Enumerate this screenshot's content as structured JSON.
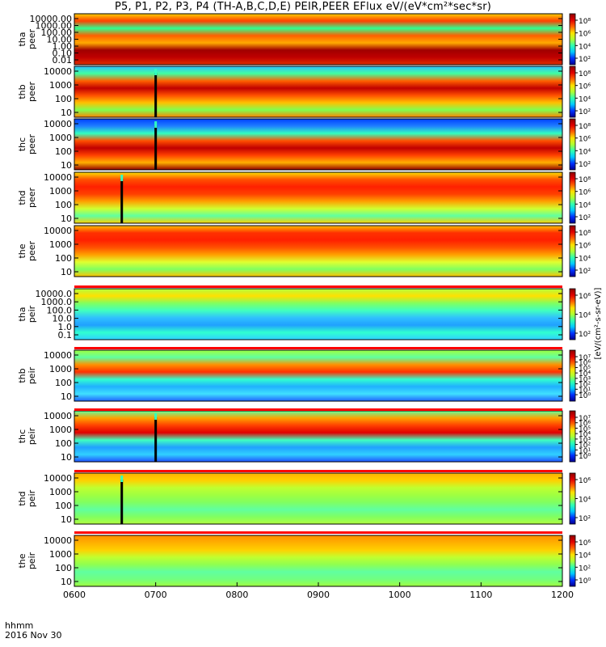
{
  "title": "P5, P1, P2, P3, P4 (TH-A,B,C,D,E) PEIR,PEER EFlux eV/(eV*cm^2*sec*sr)",
  "footer": {
    "time_unit_label": "hhmm",
    "date_label": "2016 Nov 30"
  },
  "colorbar_unit_label": "[eV/(cm^2-s-sr-eV)]",
  "chart_data": {
    "type": "heatmap",
    "title": "P5, P1, P2, P3, P4 (TH-A,B,C,D,E) PEIR,PEER EFlux eV/(eV*cm^2*sec*sr)",
    "x_ticks": [
      "0600",
      "0700",
      "0800",
      "0900",
      "1000",
      "1100",
      "1200"
    ],
    "x_range": [
      "0600",
      "1200"
    ],
    "panels": [
      {
        "probe": "tha",
        "species": "peer",
        "ylabel": "tha\npeer",
        "yticks": [
          "10000.00",
          "1000.00",
          "100.00",
          "10.00",
          "1.00",
          "0.10",
          "0.01"
        ],
        "flux_range": "10^1 – 10^8",
        "cbar_ticks": [
          "10^8",
          "10^6",
          "10^4",
          "10^2"
        ]
      },
      {
        "probe": "thb",
        "species": "peer",
        "ylabel": "thb\npeer",
        "yticks": [
          "10000",
          "1000",
          "100",
          "10"
        ],
        "flux_range": "10^1 – 10^8",
        "cbar_ticks": [
          "10^8",
          "10^6",
          "10^4",
          "10^2"
        ],
        "event_time": "0700"
      },
      {
        "probe": "thc",
        "species": "peer",
        "ylabel": "thc\npeer",
        "yticks": [
          "10000",
          "1000",
          "100",
          "10"
        ],
        "flux_range": "10^1 – 10^8",
        "cbar_ticks": [
          "10^8",
          "10^6",
          "10^4",
          "10^2"
        ],
        "event_time": "0700"
      },
      {
        "probe": "thd",
        "species": "peer",
        "ylabel": "thd\npeer",
        "yticks": [
          "10000",
          "1000",
          "100",
          "10"
        ],
        "flux_range": "10^1 – 10^8",
        "cbar_ticks": [
          "10^8",
          "10^6",
          "10^4",
          "10^2"
        ],
        "event_time": "0635"
      },
      {
        "probe": "the",
        "species": "peer",
        "ylabel": "the\npeer",
        "yticks": [
          "10000",
          "1000",
          "100",
          "10"
        ],
        "flux_range": "10^1 – 10^8",
        "cbar_ticks": [
          "10^8",
          "10^6",
          "10^4",
          "10^2"
        ]
      },
      {
        "probe": "tha",
        "species": "peir",
        "ylabel": "tha\npeir",
        "yticks": [
          "10000.0",
          "1000.0",
          "100.0",
          "10.0",
          "1.0",
          "0.1"
        ],
        "flux_range": "10^0 – 10^7",
        "cbar_ticks": [
          "10^6",
          "10^4",
          "10^2"
        ]
      },
      {
        "probe": "thb",
        "species": "peir",
        "ylabel": "thb\npeir",
        "yticks": [
          "10000",
          "1000",
          "100",
          "10"
        ],
        "flux_range": "10^0 – 10^7",
        "cbar_ticks": [
          "10^7",
          "10^6",
          "10^5",
          "10^4",
          "10^3",
          "10^2",
          "10^1",
          "10^0"
        ]
      },
      {
        "probe": "thc",
        "species": "peir",
        "ylabel": "thc\npeir",
        "yticks": [
          "10000",
          "1000",
          "100",
          "10"
        ],
        "flux_range": "10^0 – 10^7",
        "cbar_ticks": [
          "10^7",
          "10^6",
          "10^5",
          "10^4",
          "10^3",
          "10^2",
          "10^1",
          "10^0"
        ],
        "event_time": "0700"
      },
      {
        "probe": "thd",
        "species": "peir",
        "ylabel": "thd\npeir",
        "yticks": [
          "10000",
          "1000",
          "100",
          "10"
        ],
        "flux_range": "10^0 – 10^7",
        "cbar_ticks": [
          "10^6",
          "10^4",
          "10^2"
        ],
        "event_time": "0635"
      },
      {
        "probe": "the",
        "species": "peir",
        "ylabel": "the\npeir",
        "yticks": [
          "10000",
          "1000",
          "100",
          "10"
        ],
        "flux_range": "10^0 – 10^7",
        "cbar_ticks": [
          "10^6",
          "10^4",
          "10^2",
          "10^0"
        ]
      }
    ],
    "colorscale": [
      "#000090",
      "#0030ff",
      "#00c8ff",
      "#30ffb0",
      "#b0ff30",
      "#ffe000",
      "#ff6000",
      "#e00000",
      "#900000"
    ]
  }
}
